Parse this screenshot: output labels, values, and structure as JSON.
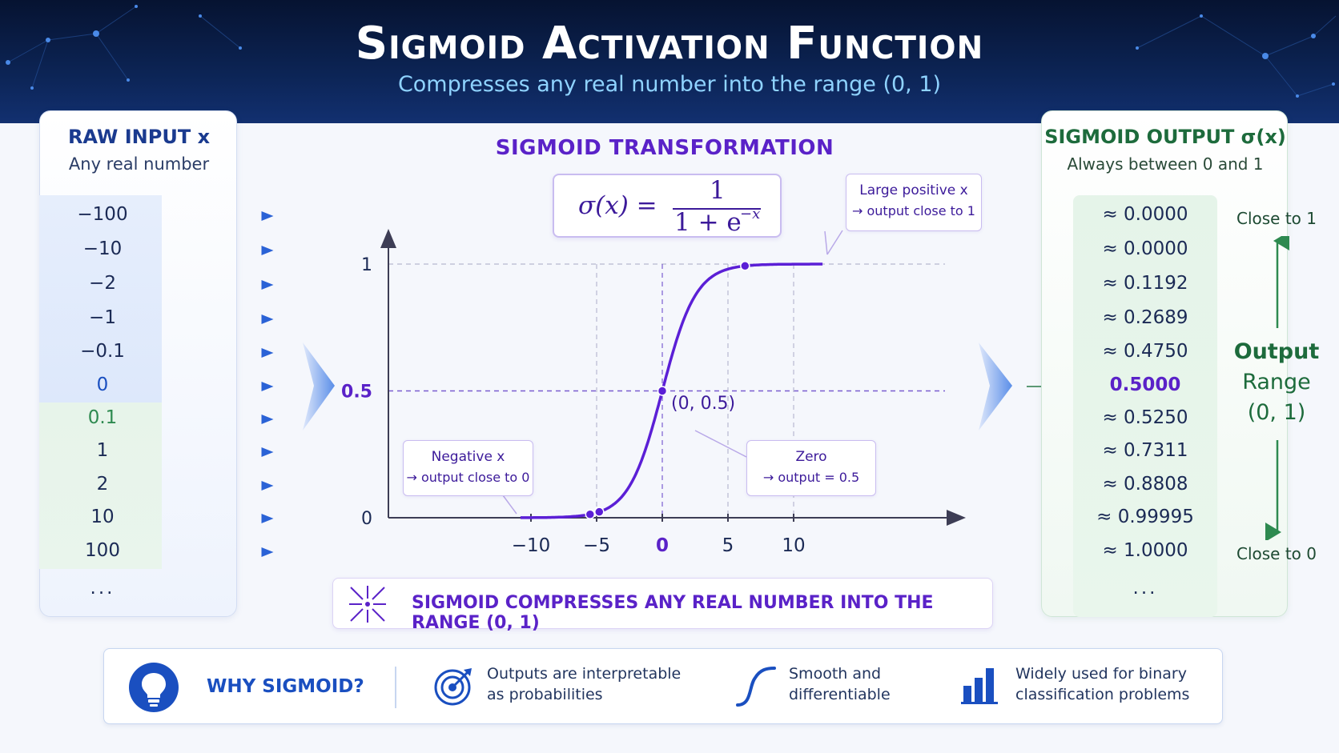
{
  "header": {
    "title": "Sigmoid Activation Function",
    "subtitle": "Compresses any real number into the range (0, 1)"
  },
  "left_panel": {
    "title": "RAW INPUT x",
    "subtitle": "Any real number",
    "inputs": [
      "−100",
      "−10",
      "−2",
      "−1",
      "−0.1",
      "0",
      "0.1",
      "1",
      "2",
      "10",
      "100"
    ],
    "ellipsis": "..."
  },
  "right_panel": {
    "title": "SIGMOID OUTPUT σ(x)",
    "subtitle": "Always between 0 and 1",
    "outputs": [
      "≈ 0.0000",
      "≈ 0.0000",
      "≈ 0.1192",
      "≈ 0.2689",
      "≈ 0.4750",
      "0.5000",
      "≈ 0.5250",
      "≈ 0.7311",
      "≈ 0.8808",
      "≈ 0.99995",
      "≈ 1.0000"
    ],
    "ellipsis": "...",
    "range_top": "Close to 1",
    "range_mid_1": "Output",
    "range_mid_2": "Range",
    "range_mid_3": "(0, 1)",
    "range_bottom": "Close to 0"
  },
  "center": {
    "title": "SIGMOID TRANSFORMATION",
    "formula_lhs": "σ(x) =",
    "formula_num": "1",
    "formula_den": "1 + e",
    "formula_exp": "−x",
    "callout_positive_1": "Large positive x",
    "callout_positive_2": "→ output close to 1",
    "callout_negative_1": "Negative x",
    "callout_negative_2": "→ output close to 0",
    "callout_zero_1": "Zero",
    "callout_zero_2": "→ output = 0.5",
    "point_label": "(0, 0.5)",
    "bottom_note": "SIGMOID COMPRESSES ANY REAL NUMBER INTO THE RANGE (0, 1)"
  },
  "chart_data": {
    "type": "line",
    "function": "sigmoid",
    "x_range": [
      -10,
      12
    ],
    "y_range": [
      0,
      1
    ],
    "x_ticks": [
      "−10",
      "−5",
      "0",
      "5",
      "10"
    ],
    "x_tick_values": [
      -10,
      -5,
      0,
      5,
      10
    ],
    "y_ticks": [
      "0",
      "0.5",
      "1"
    ],
    "y_tick_values": [
      0,
      0.5,
      1
    ],
    "grid": "dashed",
    "marked_points": [
      {
        "x": -5.5,
        "y": 0.004
      },
      {
        "x": -4.8,
        "y": 0.008
      },
      {
        "x": 0,
        "y": 0.5
      },
      {
        "x": 6.3,
        "y": 0.998
      }
    ],
    "colors": {
      "curve": "#5b1fd6",
      "axis": "#3d3d55",
      "grid": "#b8b8d0",
      "half": "#7a5cd0"
    }
  },
  "why": {
    "label": "WHY SIGMOID?",
    "item1_l1": "Outputs are interpretable",
    "item1_l2": "as probabilities",
    "item2_l1": "Smooth and",
    "item2_l2": "differentiable",
    "item3_l1": "Widely used for binary",
    "item3_l2": "classification problems",
    "icons": [
      "lightbulb-icon",
      "target-icon",
      "s-curve-icon",
      "bar-chart-icon"
    ]
  },
  "colors": {
    "header_bg": "#0c2455",
    "accent_purple": "#5a22c8",
    "accent_blue": "#1a4fc0",
    "accent_green": "#1d6b3c",
    "subtitle": "#8fd3ff"
  }
}
